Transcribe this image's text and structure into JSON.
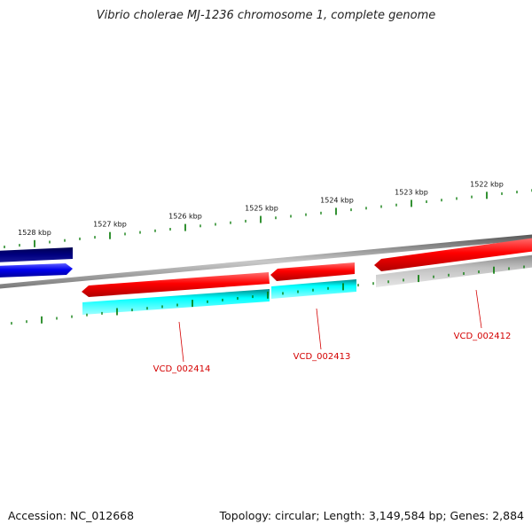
{
  "title": "Vibrio cholerae MJ-1236 chromosome 1, complete genome",
  "footer": {
    "accession": "Accession: NC_012668",
    "summary": "Topology: circular; Length: 3,149,584 bp; Genes: 2,884"
  },
  "ruler": {
    "unit": "kbp",
    "labels": [
      "1528 kbp",
      "1527 kbp",
      "1526 kbp",
      "1525 kbp",
      "1524 kbp",
      "1523 kbp",
      "1522 kbp"
    ]
  },
  "genes": [
    {
      "label": "VCD_002414"
    },
    {
      "label": "VCD_002413"
    },
    {
      "label": "VCD_002412"
    }
  ],
  "colors": {
    "forward_cds": "#0000ee",
    "forward_dark": "#000080",
    "reverse_cds": "#ff0000",
    "reverse_light": "#00ffff",
    "backbone": "#808080",
    "ticks": "#007700",
    "labels": "#d40000"
  }
}
